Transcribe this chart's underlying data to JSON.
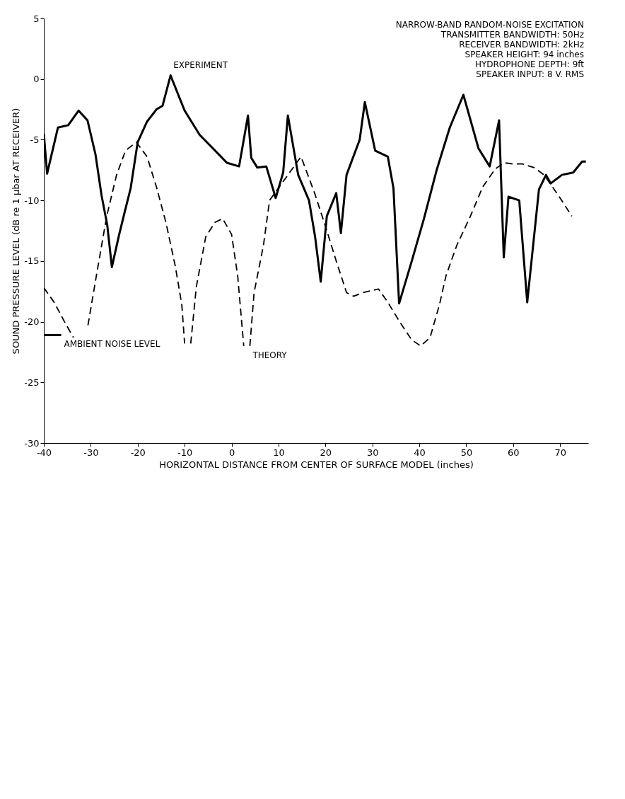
{
  "chart_data": {
    "type": "line",
    "xlabel": "HORIZONTAL DISTANCE FROM CENTER OF SURFACE MODEL (inches)",
    "ylabel": "SOUND PRESSURE LEVEL (dB re 1 μbar AT RECEIVER)",
    "xlim": [
      -40,
      76
    ],
    "xticks": [
      -40,
      -30,
      -20,
      -10,
      0,
      10,
      20,
      30,
      40,
      50,
      60,
      70
    ],
    "ylim": [
      -30,
      5
    ],
    "yticks": [
      -30,
      -25,
      -20,
      -15,
      -10,
      -5,
      0,
      5
    ],
    "grid": false,
    "series": [
      {
        "color": "#000000",
        "line_style": "solid",
        "x": [
          -40,
          -39.3,
          -37,
          -34.8,
          -32.6,
          -30.7,
          -29,
          -27.7,
          -26.5,
          -25.5,
          -24,
          -22.8,
          -21.5,
          -20,
          -18,
          -16,
          -14.7,
          -13,
          -10,
          -6.8,
          -3.5,
          -1,
          1.6,
          3.5,
          4.2,
          5.5,
          7.4,
          9.4,
          11,
          12,
          14.2,
          16.5,
          17.8,
          19,
          20.3,
          22.3,
          23.3,
          24.5,
          27.3,
          28.4,
          30.6,
          33.3,
          34.5,
          35.7,
          38.4,
          41,
          43.7,
          46.5,
          49.4,
          52.6,
          55,
          57,
          58,
          59,
          61.3,
          63,
          65.5,
          67,
          68,
          70.4,
          72.8,
          74.7,
          75.5
        ],
        "values": [
          -4.5,
          -7.8,
          -4,
          -3.8,
          -2.6,
          -3.4,
          -6.2,
          -9.6,
          -12,
          -15.5,
          -12.9,
          -11,
          -9,
          -5.2,
          -3.5,
          -2.5,
          -2.2,
          0.3,
          -2.6,
          -4.6,
          -5.9,
          -6.9,
          -7.2,
          -3,
          -6.5,
          -7.3,
          -7.2,
          -9.8,
          -7.7,
          -3,
          -7.9,
          -10,
          -13,
          -16.7,
          -11.3,
          -9.4,
          -12.7,
          -7.9,
          -5,
          -1.9,
          -5.9,
          -6.4,
          -9,
          -18.5,
          -15,
          -11.5,
          -7.5,
          -4,
          -1.3,
          -5.7,
          -7.2,
          -3.4,
          -14.7,
          -9.7,
          -10,
          -18.4,
          -9.1,
          -7.9,
          -8.6,
          -7.9,
          -7.7,
          -6.8,
          -6.8
        ]
      },
      {
        "color": "#000000",
        "line_style": "dashed",
        "x": [
          -40,
          -37.8,
          -35.6,
          -33.7,
          -32,
          -30.6,
          -28.8,
          -26.6,
          -24.5,
          -22.6,
          -20.3,
          -18,
          -16,
          -14,
          -12,
          -10.6,
          -10,
          -9.4,
          -8.7,
          -7.5,
          -5.5,
          -3.5,
          -1.9,
          0,
          1.3,
          2.6,
          3.2,
          3.9,
          4.8,
          6.8,
          8.1,
          14.8,
          17.7,
          20.3,
          22.3,
          24.5,
          26,
          28,
          31.3,
          33.3,
          35.8,
          38.4,
          40.3,
          42.3,
          44.3,
          45.7,
          48,
          50.9,
          53.5,
          56.2,
          58.1,
          60,
          62,
          64.5,
          66.6,
          70,
          72.5
        ],
        "values": [
          -17.2,
          -18.4,
          -20,
          -21.3,
          null,
          -20.3,
          -16.2,
          -11.3,
          -7.9,
          -5.9,
          -5.2,
          -6.4,
          -8.9,
          -11.8,
          -15.4,
          -18.6,
          -21.8,
          null,
          -21.8,
          -17.1,
          -13,
          -11.8,
          -11.5,
          -12.8,
          -16.2,
          -22,
          null,
          -22,
          -17.6,
          -13.7,
          -10,
          -6.4,
          -9.4,
          -12.5,
          -15,
          -17.6,
          -17.9,
          -17.6,
          -17.3,
          -18.4,
          -20,
          -21.5,
          -22,
          -21.3,
          -18.6,
          -16.2,
          -13.7,
          -11.3,
          -8.9,
          -7.4,
          -6.9,
          -7,
          -7,
          -7.3,
          -7.9,
          -9.8,
          -11.3
        ]
      },
      {
        "color": "#000000",
        "line_style": "solid",
        "x": [
          -40,
          -36.3
        ],
        "values": [
          -21.1,
          -21.1
        ]
      }
    ],
    "annotations": [
      {
        "text": "EXPERIMENT",
        "x": -13,
        "y": 0.3
      },
      {
        "text": "THEORY",
        "x": 3.9,
        "y": -22
      },
      {
        "text": "AMBIENT NOISE LEVEL",
        "x": -36.3,
        "y": -21.1
      },
      "NARROW-BAND RANDOM-NOISE EXCITATION",
      "TRANSMITTER BANDWIDTH: 50Hz",
      "RECEIVER BANDWIDTH: 2kHz",
      "SPEAKER HEIGHT: 94 inches",
      "HYDROPHONE DEPTH: 9ft",
      "SPEAKER INPUT: 8 V. RMS"
    ]
  }
}
